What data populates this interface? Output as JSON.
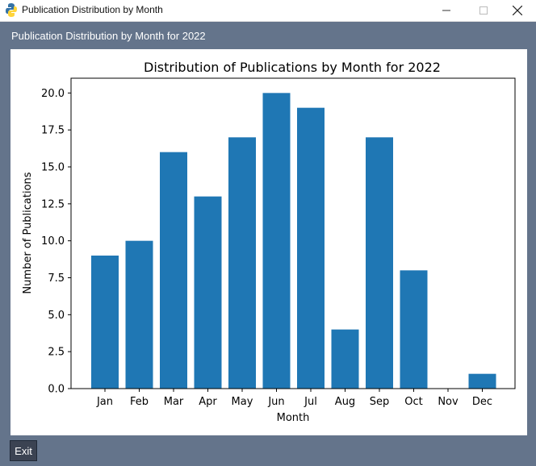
{
  "window": {
    "title": "Publication Distribution by Month",
    "icon": "python-icon"
  },
  "frame": {
    "label": "Publication Distribution by Month for 2022"
  },
  "buttons": {
    "exit_label": "Exit"
  },
  "chart_data": {
    "type": "bar",
    "title": "Distribution of Publications by Month for 2022",
    "xlabel": "Month",
    "ylabel": "Number of Publications",
    "categories": [
      "Jan",
      "Feb",
      "Mar",
      "Apr",
      "May",
      "Jun",
      "Jul",
      "Aug",
      "Sep",
      "Oct",
      "Nov",
      "Dec"
    ],
    "values": [
      9,
      10,
      16,
      13,
      17,
      20,
      19,
      4,
      17,
      8,
      0,
      1
    ],
    "ylim": [
      0,
      21
    ],
    "yticks": [
      0.0,
      2.5,
      5.0,
      7.5,
      10.0,
      12.5,
      15.0,
      17.5,
      20.0
    ],
    "ytick_labels": [
      "0.0",
      "2.5",
      "5.0",
      "7.5",
      "10.0",
      "12.5",
      "15.0",
      "17.5",
      "20.0"
    ],
    "bar_color": "#1f77b4",
    "grid": false,
    "legend": "none"
  }
}
